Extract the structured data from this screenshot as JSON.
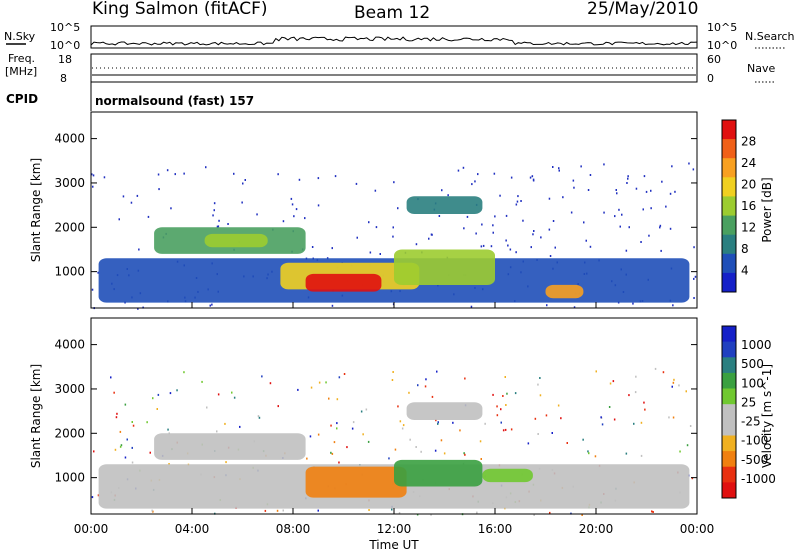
{
  "header": {
    "station": "King Salmon (fitACF)",
    "beam": "Beam 12",
    "date": "25/May/2010"
  },
  "status_panel": {
    "nsky_label": "N.Sky",
    "nsky_ticks": [
      "10^5",
      "10^0"
    ],
    "nsearch_label": "N.Search",
    "nsearch_ticks": [
      "10^5",
      "10^0"
    ],
    "freq_label": "Freq.",
    "freq_unit": "[MHz]",
    "freq_ticks": [
      "18",
      "8"
    ],
    "nave_label": "Nave",
    "nave_ticks": [
      "60",
      "0"
    ],
    "cpid_label": "CPID",
    "cpid_value": "normalsound (fast) 157"
  },
  "colors": {
    "power": [
      "#1520c8",
      "#1f4fb8",
      "#2a7f80",
      "#4aa060",
      "#9ccc30",
      "#f0d020",
      "#f8a020",
      "#f06018",
      "#e01010"
    ],
    "velocity": [
      "#1520c8",
      "#2040c0",
      "#2a7f80",
      "#3aa040",
      "#70c830",
      "#c0c0c0",
      "#c0c0c0",
      "#f0b020",
      "#f08010",
      "#e83010",
      "#e01010"
    ],
    "scatter_pattern": "#2030c0"
  },
  "chart_data": [
    {
      "type": "heatmap",
      "title": "Power",
      "xlabel": "Time UT",
      "ylabel": "Slant Range [km]",
      "x_ticks": [
        "00:00",
        "04:00",
        "08:00",
        "12:00",
        "16:00",
        "20:00",
        "00:00"
      ],
      "x_range_hours": [
        0,
        24
      ],
      "y_ticks": [
        "1000",
        "2000",
        "3000",
        "4000"
      ],
      "ylim_km": [
        180,
        4600
      ],
      "colorbar_label": "Power [dB]",
      "colorbar_ticks": [
        "4",
        "8",
        "12",
        "16",
        "20",
        "24",
        "28"
      ],
      "regions": [
        {
          "t0": 0.3,
          "t1": 23.7,
          "r0": 300,
          "r1": 1300,
          "level": 1
        },
        {
          "t0": 2.5,
          "t1": 8.5,
          "r0": 1400,
          "r1": 2000,
          "level": 3
        },
        {
          "t0": 4.5,
          "t1": 7.0,
          "r0": 1550,
          "r1": 1850,
          "level": 4
        },
        {
          "t0": 7.5,
          "t1": 13.0,
          "r0": 600,
          "r1": 1200,
          "level": 5
        },
        {
          "t0": 8.5,
          "t1": 11.5,
          "r0": 550,
          "r1": 950,
          "level": 8
        },
        {
          "t0": 12.0,
          "t1": 16.0,
          "r0": 700,
          "r1": 1500,
          "level": 4
        },
        {
          "t0": 12.5,
          "t1": 15.5,
          "r0": 2300,
          "r1": 2700,
          "level": 2
        },
        {
          "t0": 18.0,
          "t1": 19.5,
          "r0": 400,
          "r1": 700,
          "level": 6
        }
      ]
    },
    {
      "type": "heatmap",
      "title": "Velocity",
      "xlabel": "Time UT",
      "ylabel": "Slant Range [km]",
      "x_ticks": [
        "00:00",
        "04:00",
        "08:00",
        "12:00",
        "16:00",
        "20:00",
        "00:00"
      ],
      "x_range_hours": [
        0,
        24
      ],
      "y_ticks": [
        "1000",
        "2000",
        "3000",
        "4000"
      ],
      "ylim_km": [
        180,
        4600
      ],
      "colorbar_label": "Velocity [m s^-1]",
      "colorbar_ticks": [
        "1000",
        "500",
        "100",
        "25",
        "-25",
        "-100",
        "-500",
        "-1000"
      ],
      "regions": [
        {
          "t0": 0.3,
          "t1": 23.7,
          "r0": 300,
          "r1": 1300,
          "level": 5
        },
        {
          "t0": 2.5,
          "t1": 8.5,
          "r0": 1400,
          "r1": 2000,
          "level": 5
        },
        {
          "t0": 8.5,
          "t1": 12.5,
          "r0": 550,
          "r1": 1250,
          "level": 8
        },
        {
          "t0": 12.0,
          "t1": 15.5,
          "r0": 800,
          "r1": 1400,
          "level": 3
        },
        {
          "t0": 15.5,
          "t1": 17.5,
          "r0": 900,
          "r1": 1200,
          "level": 4
        },
        {
          "t0": 12.5,
          "t1": 15.5,
          "r0": 2300,
          "r1": 2700,
          "level": 5
        }
      ]
    }
  ]
}
